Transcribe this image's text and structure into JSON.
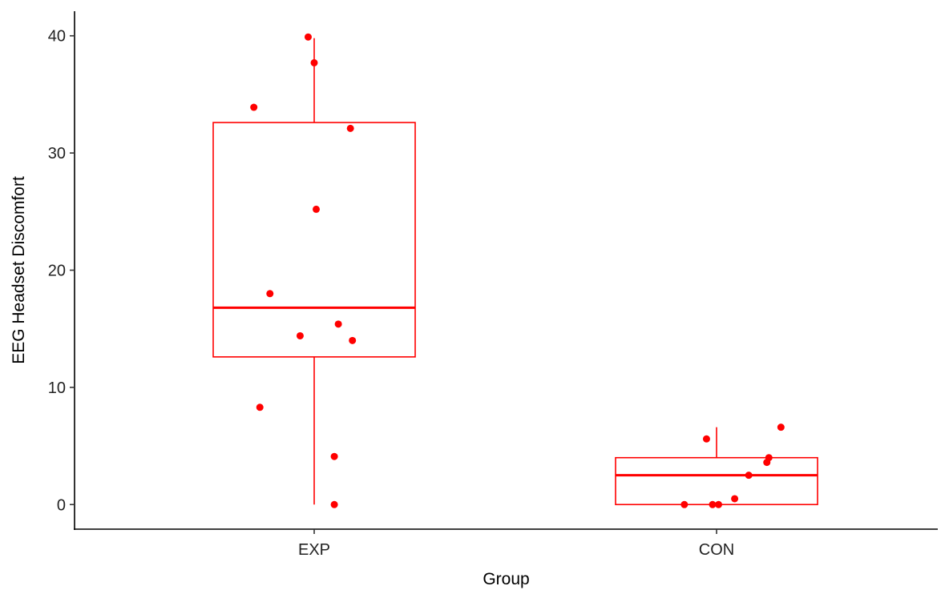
{
  "chart_data": {
    "type": "box",
    "title": "",
    "xlabel": "Group",
    "ylabel": "EEG Headset Discomfort",
    "categories": [
      "EXP",
      "CON"
    ],
    "ylim": [
      -2.1,
      42.1
    ],
    "yticks": [
      0,
      10,
      20,
      30,
      40
    ],
    "ytick_labels": [
      "0",
      "10",
      "20",
      "30",
      "40"
    ],
    "grid": false,
    "legend": "none",
    "color": "#ff0000",
    "boxes": [
      {
        "category": "EXP",
        "whisker_low": 0,
        "q1": 12.6,
        "median": 16.8,
        "q3": 32.6,
        "whisker_high": 39.8
      },
      {
        "category": "CON",
        "whisker_low": 0,
        "q1": 0,
        "median": 2.5,
        "q3": 4.0,
        "whisker_high": 6.6
      }
    ],
    "points": [
      {
        "category": "EXP",
        "jitter": -0.3,
        "y": 33.9
      },
      {
        "category": "EXP",
        "jitter": -0.03,
        "y": 39.9
      },
      {
        "category": "EXP",
        "jitter": 0.0,
        "y": 37.7
      },
      {
        "category": "EXP",
        "jitter": 0.18,
        "y": 32.1
      },
      {
        "category": "EXP",
        "jitter": 0.01,
        "y": 25.2
      },
      {
        "category": "EXP",
        "jitter": -0.22,
        "y": 18.0
      },
      {
        "category": "EXP",
        "jitter": -0.07,
        "y": 14.4
      },
      {
        "category": "EXP",
        "jitter": 0.12,
        "y": 15.4
      },
      {
        "category": "EXP",
        "jitter": 0.19,
        "y": 14.0
      },
      {
        "category": "EXP",
        "jitter": -0.27,
        "y": 8.3
      },
      {
        "category": "EXP",
        "jitter": 0.1,
        "y": 4.1
      },
      {
        "category": "EXP",
        "jitter": 0.1,
        "y": 0.0
      },
      {
        "category": "CON",
        "jitter": -0.05,
        "y": 5.6
      },
      {
        "category": "CON",
        "jitter": 0.32,
        "y": 6.6
      },
      {
        "category": "CON",
        "jitter": 0.26,
        "y": 4.0
      },
      {
        "category": "CON",
        "jitter": 0.25,
        "y": 3.6
      },
      {
        "category": "CON",
        "jitter": 0.16,
        "y": 2.5
      },
      {
        "category": "CON",
        "jitter": 0.09,
        "y": 0.5
      },
      {
        "category": "CON",
        "jitter": -0.16,
        "y": 0.0
      },
      {
        "category": "CON",
        "jitter": -0.02,
        "y": 0.0
      },
      {
        "category": "CON",
        "jitter": 0.01,
        "y": 0.0
      }
    ]
  }
}
